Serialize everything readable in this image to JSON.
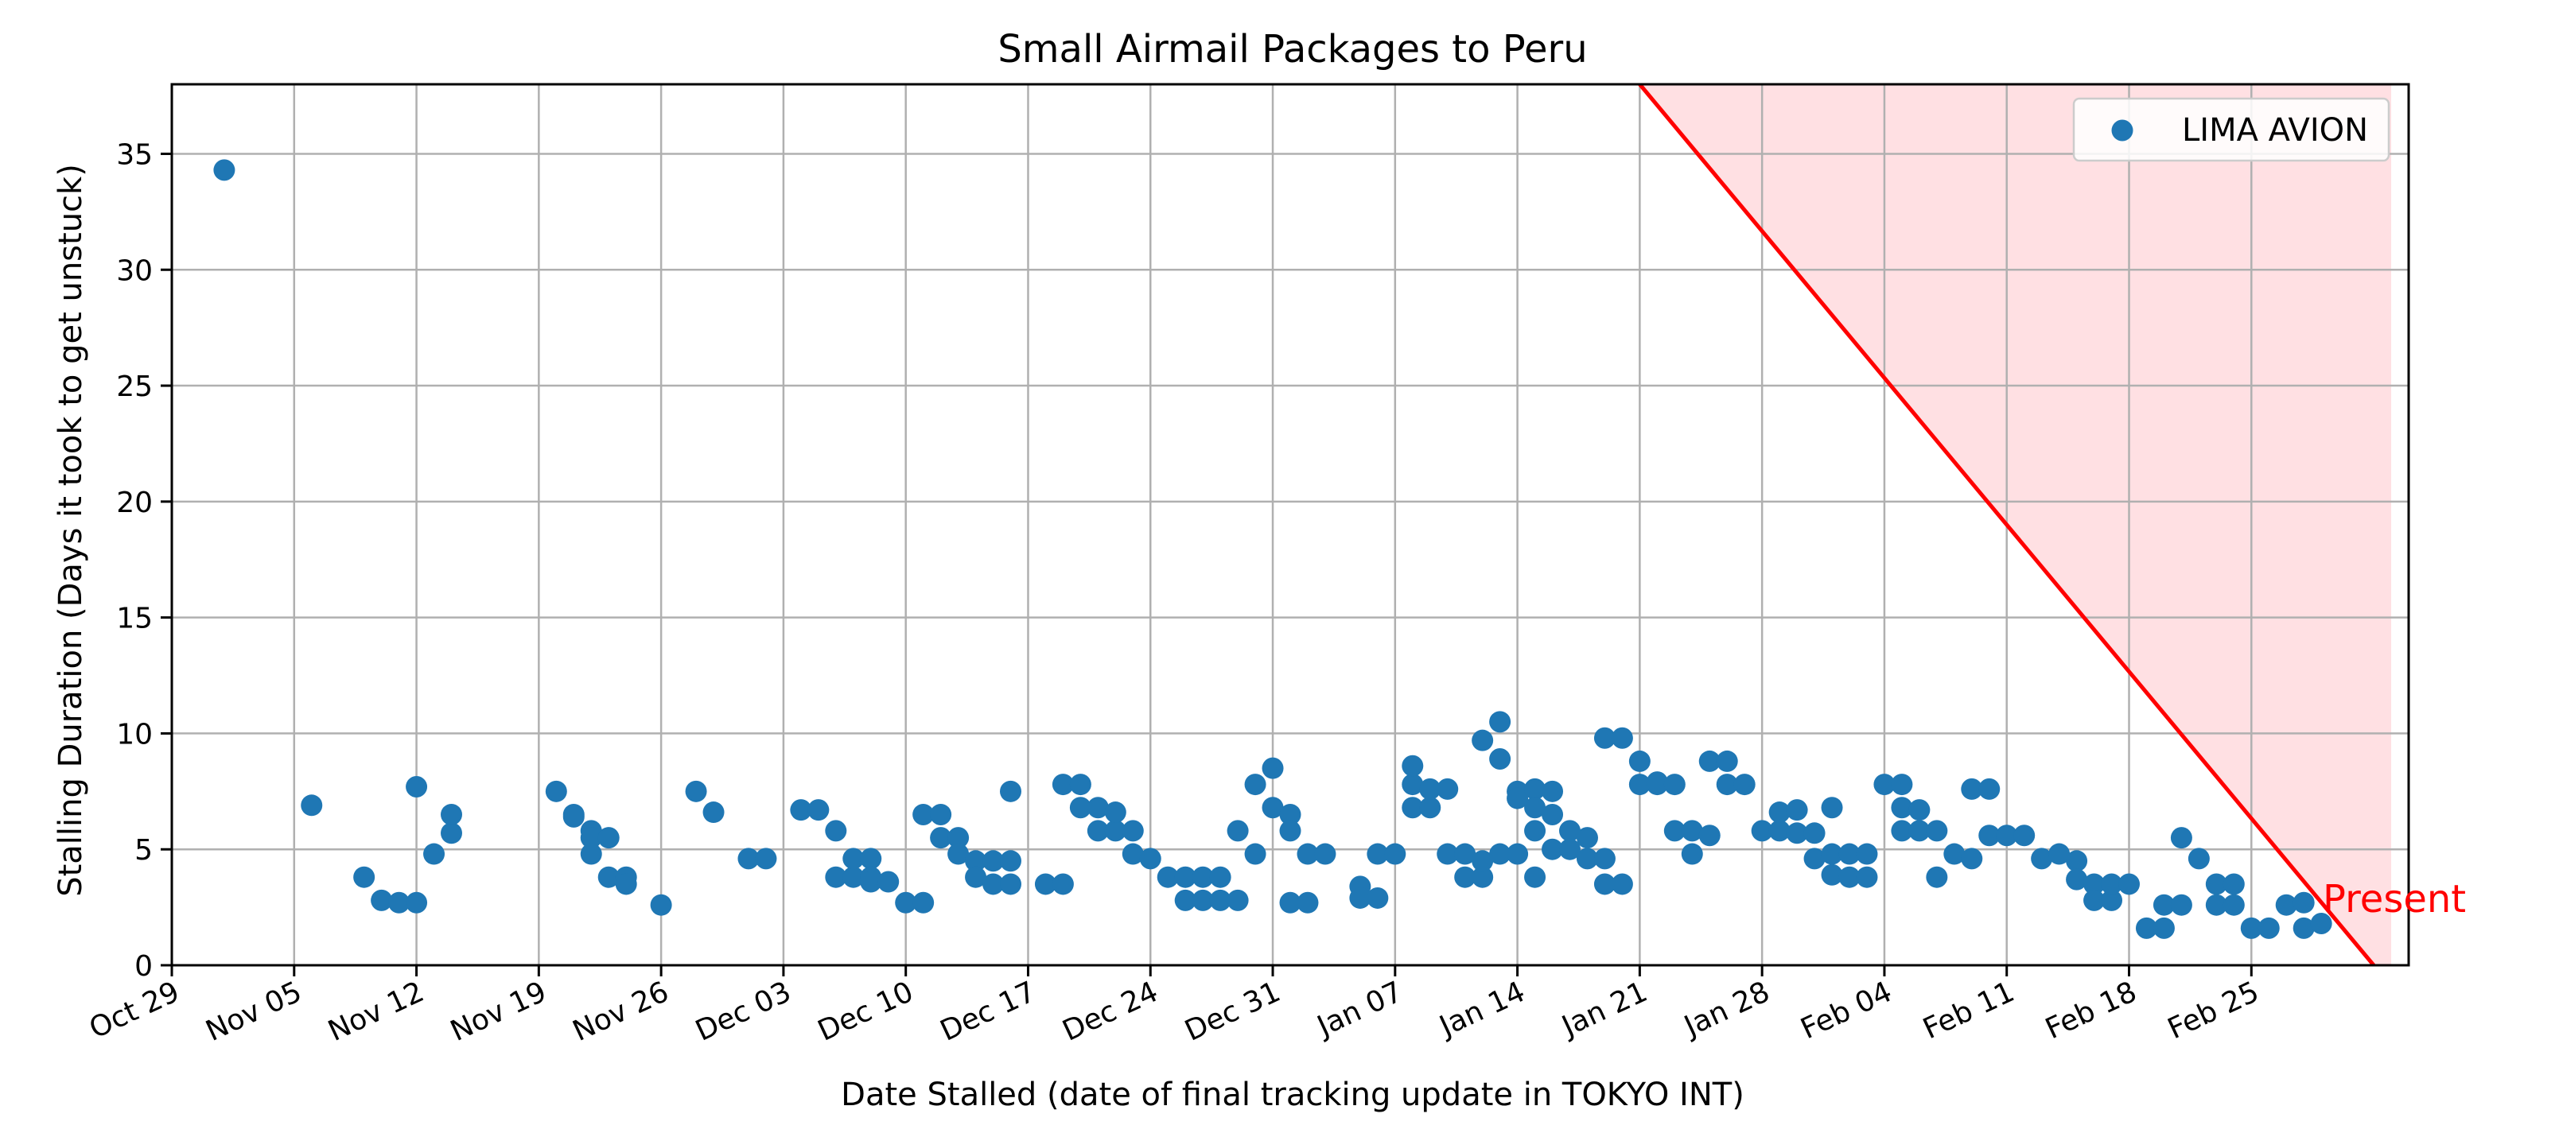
{
  "chart_data": {
    "type": "scatter",
    "title": "Small Airmail Packages to Peru",
    "xlabel": "Date Stalled (date of final tracking update in TOKYO INT)",
    "ylabel": "Stalling Duration (Days it took to get unstuck)",
    "x_type": "date",
    "xlim": [
      "2023-10-29",
      "2024-03-05"
    ],
    "ylim": [
      0,
      38
    ],
    "grid": true,
    "legend_position": "top-right",
    "x_tick_labels": [
      {
        "date": "2023-10-29",
        "label": "Oct 29"
      },
      {
        "date": "2023-11-05",
        "label": "Nov 05"
      },
      {
        "date": "2023-11-12",
        "label": "Nov 12"
      },
      {
        "date": "2023-11-19",
        "label": "Nov 19"
      },
      {
        "date": "2023-11-26",
        "label": "Nov 26"
      },
      {
        "date": "2023-12-03",
        "label": "Dec 03"
      },
      {
        "date": "2023-12-10",
        "label": "Dec 10"
      },
      {
        "date": "2023-12-17",
        "label": "Dec 17"
      },
      {
        "date": "2023-12-24",
        "label": "Dec 24"
      },
      {
        "date": "2023-12-31",
        "label": "Dec 31"
      },
      {
        "date": "2024-01-07",
        "label": "Jan 07"
      },
      {
        "date": "2024-01-14",
        "label": "Jan 14"
      },
      {
        "date": "2024-01-21",
        "label": "Jan 21"
      },
      {
        "date": "2024-01-28",
        "label": "Jan 28"
      },
      {
        "date": "2024-02-04",
        "label": "Feb 04"
      },
      {
        "date": "2024-02-11",
        "label": "Feb 11"
      },
      {
        "date": "2024-02-18",
        "label": "Feb 18"
      },
      {
        "date": "2024-02-25",
        "label": "Feb 25"
      }
    ],
    "y_ticks": [
      0,
      5,
      10,
      15,
      20,
      25,
      30,
      35
    ],
    "series": [
      {
        "name": "LIMA AVION",
        "color": "#1f77b4",
        "points": [
          [
            "2023-11-01",
            34.3
          ],
          [
            "2023-11-06",
            6.9
          ],
          [
            "2023-11-09",
            3.8
          ],
          [
            "2023-11-10",
            2.8
          ],
          [
            "2023-11-11",
            2.7
          ],
          [
            "2023-11-12",
            2.7
          ],
          [
            "2023-11-12",
            7.7
          ],
          [
            "2023-11-13",
            4.8
          ],
          [
            "2023-11-14",
            5.7
          ],
          [
            "2023-11-14",
            6.5
          ],
          [
            "2023-11-20",
            7.5
          ],
          [
            "2023-11-21",
            6.5
          ],
          [
            "2023-11-21",
            6.4
          ],
          [
            "2023-11-22",
            5.8
          ],
          [
            "2023-11-22",
            5.5
          ],
          [
            "2023-11-22",
            4.8
          ],
          [
            "2023-11-23",
            5.5
          ],
          [
            "2023-11-23",
            3.8
          ],
          [
            "2023-11-24",
            3.8
          ],
          [
            "2023-11-24",
            3.5
          ],
          [
            "2023-11-26",
            2.6
          ],
          [
            "2023-11-28",
            7.5
          ],
          [
            "2023-11-29",
            6.6
          ],
          [
            "2023-12-01",
            4.6
          ],
          [
            "2023-12-02",
            4.6
          ],
          [
            "2023-12-04",
            6.7
          ],
          [
            "2023-12-05",
            6.7
          ],
          [
            "2023-12-06",
            5.8
          ],
          [
            "2023-12-06",
            3.8
          ],
          [
            "2023-12-07",
            3.8
          ],
          [
            "2023-12-07",
            4.6
          ],
          [
            "2023-12-08",
            4.6
          ],
          [
            "2023-12-08",
            3.8
          ],
          [
            "2023-12-08",
            3.6
          ],
          [
            "2023-12-09",
            3.6
          ],
          [
            "2023-12-10",
            2.7
          ],
          [
            "2023-12-11",
            2.7
          ],
          [
            "2023-12-11",
            6.5
          ],
          [
            "2023-12-12",
            6.5
          ],
          [
            "2023-12-12",
            5.5
          ],
          [
            "2023-12-13",
            5.5
          ],
          [
            "2023-12-13",
            4.8
          ],
          [
            "2023-12-14",
            4.5
          ],
          [
            "2023-12-14",
            3.8
          ],
          [
            "2023-12-15",
            4.5
          ],
          [
            "2023-12-15",
            3.5
          ],
          [
            "2023-12-16",
            7.5
          ],
          [
            "2023-12-16",
            4.5
          ],
          [
            "2023-12-16",
            3.5
          ],
          [
            "2023-12-18",
            3.5
          ],
          [
            "2023-12-19",
            3.5
          ],
          [
            "2023-12-19",
            7.8
          ],
          [
            "2023-12-20",
            7.8
          ],
          [
            "2023-12-20",
            6.8
          ],
          [
            "2023-12-21",
            6.8
          ],
          [
            "2023-12-21",
            5.8
          ],
          [
            "2023-12-22",
            5.8
          ],
          [
            "2023-12-22",
            6.6
          ],
          [
            "2023-12-23",
            5.8
          ],
          [
            "2023-12-23",
            4.8
          ],
          [
            "2023-12-24",
            4.6
          ],
          [
            "2023-12-25",
            3.8
          ],
          [
            "2023-12-26",
            3.8
          ],
          [
            "2023-12-26",
            2.8
          ],
          [
            "2023-12-27",
            2.8
          ],
          [
            "2023-12-27",
            3.8
          ],
          [
            "2023-12-28",
            3.8
          ],
          [
            "2023-12-28",
            2.8
          ],
          [
            "2023-12-29",
            2.8
          ],
          [
            "2023-12-29",
            5.8
          ],
          [
            "2023-12-30",
            4.8
          ],
          [
            "2023-12-30",
            7.8
          ],
          [
            "2023-12-31",
            8.5
          ],
          [
            "2023-12-31",
            6.8
          ],
          [
            "2024-01-01",
            6.5
          ],
          [
            "2024-01-01",
            5.8
          ],
          [
            "2024-01-01",
            2.7
          ],
          [
            "2024-01-02",
            2.7
          ],
          [
            "2024-01-02",
            4.8
          ],
          [
            "2024-01-03",
            4.8
          ],
          [
            "2024-01-05",
            3.4
          ],
          [
            "2024-01-05",
            2.9
          ],
          [
            "2024-01-06",
            2.9
          ],
          [
            "2024-01-06",
            4.8
          ],
          [
            "2024-01-07",
            4.8
          ],
          [
            "2024-01-08",
            7.8
          ],
          [
            "2024-01-08",
            8.6
          ],
          [
            "2024-01-08",
            6.8
          ],
          [
            "2024-01-09",
            6.8
          ],
          [
            "2024-01-09",
            7.6
          ],
          [
            "2024-01-10",
            7.6
          ],
          [
            "2024-01-10",
            4.8
          ],
          [
            "2024-01-11",
            4.8
          ],
          [
            "2024-01-11",
            3.8
          ],
          [
            "2024-01-12",
            3.8
          ],
          [
            "2024-01-12",
            4.5
          ],
          [
            "2024-01-12",
            9.7
          ],
          [
            "2024-01-13",
            10.5
          ],
          [
            "2024-01-13",
            8.9
          ],
          [
            "2024-01-13",
            4.8
          ],
          [
            "2024-01-14",
            7.5
          ],
          [
            "2024-01-14",
            4.8
          ],
          [
            "2024-01-14",
            7.2
          ],
          [
            "2024-01-15",
            7.6
          ],
          [
            "2024-01-15",
            3.8
          ],
          [
            "2024-01-15",
            6.8
          ],
          [
            "2024-01-15",
            5.8
          ],
          [
            "2024-01-16",
            6.5
          ],
          [
            "2024-01-16",
            5.0
          ],
          [
            "2024-01-16",
            7.5
          ],
          [
            "2024-01-17",
            5.8
          ],
          [
            "2024-01-17",
            5.0
          ],
          [
            "2024-01-18",
            5.5
          ],
          [
            "2024-01-18",
            4.6
          ],
          [
            "2024-01-19",
            4.6
          ],
          [
            "2024-01-19",
            9.8
          ],
          [
            "2024-01-19",
            3.5
          ],
          [
            "2024-01-20",
            9.8
          ],
          [
            "2024-01-20",
            3.5
          ],
          [
            "2024-01-21",
            8.8
          ],
          [
            "2024-01-21",
            7.8
          ],
          [
            "2024-01-22",
            7.8
          ],
          [
            "2024-01-22",
            7.9
          ],
          [
            "2024-01-23",
            7.8
          ],
          [
            "2024-01-23",
            5.8
          ],
          [
            "2024-01-24",
            5.8
          ],
          [
            "2024-01-24",
            4.8
          ],
          [
            "2024-01-25",
            5.6
          ],
          [
            "2024-01-25",
            8.8
          ],
          [
            "2024-01-26",
            8.8
          ],
          [
            "2024-01-26",
            7.8
          ],
          [
            "2024-01-27",
            7.8
          ],
          [
            "2024-01-28",
            5.8
          ],
          [
            "2024-01-29",
            5.8
          ],
          [
            "2024-01-29",
            6.6
          ],
          [
            "2024-01-30",
            6.7
          ],
          [
            "2024-01-30",
            5.7
          ],
          [
            "2024-01-31",
            5.7
          ],
          [
            "2024-01-31",
            4.6
          ],
          [
            "2024-02-01",
            6.8
          ],
          [
            "2024-02-01",
            3.9
          ],
          [
            "2024-02-01",
            4.8
          ],
          [
            "2024-02-02",
            4.8
          ],
          [
            "2024-02-02",
            3.8
          ],
          [
            "2024-02-03",
            3.8
          ],
          [
            "2024-02-03",
            4.8
          ],
          [
            "2024-02-04",
            7.8
          ],
          [
            "2024-02-05",
            7.8
          ],
          [
            "2024-02-05",
            5.8
          ],
          [
            "2024-02-05",
            6.8
          ],
          [
            "2024-02-06",
            6.7
          ],
          [
            "2024-02-06",
            5.8
          ],
          [
            "2024-02-07",
            5.8
          ],
          [
            "2024-02-07",
            3.8
          ],
          [
            "2024-02-08",
            4.8
          ],
          [
            "2024-02-09",
            4.6
          ],
          [
            "2024-02-09",
            7.6
          ],
          [
            "2024-02-10",
            7.6
          ],
          [
            "2024-02-10",
            5.6
          ],
          [
            "2024-02-11",
            5.6
          ],
          [
            "2024-02-12",
            5.6
          ],
          [
            "2024-02-13",
            4.6
          ],
          [
            "2024-02-14",
            4.8
          ],
          [
            "2024-02-15",
            4.5
          ],
          [
            "2024-02-15",
            3.7
          ],
          [
            "2024-02-16",
            3.5
          ],
          [
            "2024-02-16",
            2.8
          ],
          [
            "2024-02-17",
            2.8
          ],
          [
            "2024-02-17",
            3.5
          ],
          [
            "2024-02-18",
            3.5
          ],
          [
            "2024-02-19",
            1.6
          ],
          [
            "2024-02-20",
            1.6
          ],
          [
            "2024-02-20",
            2.6
          ],
          [
            "2024-02-21",
            2.6
          ],
          [
            "2024-02-21",
            5.5
          ],
          [
            "2024-02-22",
            4.6
          ],
          [
            "2024-02-23",
            3.5
          ],
          [
            "2024-02-23",
            2.6
          ],
          [
            "2024-02-24",
            2.6
          ],
          [
            "2024-02-24",
            3.5
          ],
          [
            "2024-02-25",
            1.6
          ],
          [
            "2024-02-26",
            1.6
          ],
          [
            "2024-02-27",
            2.6
          ],
          [
            "2024-02-28",
            2.7
          ],
          [
            "2024-02-28",
            1.6
          ],
          [
            "2024-02-29",
            1.8
          ]
        ]
      }
    ],
    "annotations": [
      {
        "text": "Present",
        "color": "#ff0000",
        "line": [
          [
            "2024-01-21",
            38
          ],
          [
            "2024-03-03",
            0
          ]
        ],
        "shade_color": "#ffe0e3",
        "shade_x_right": "2024-03-04"
      }
    ]
  }
}
